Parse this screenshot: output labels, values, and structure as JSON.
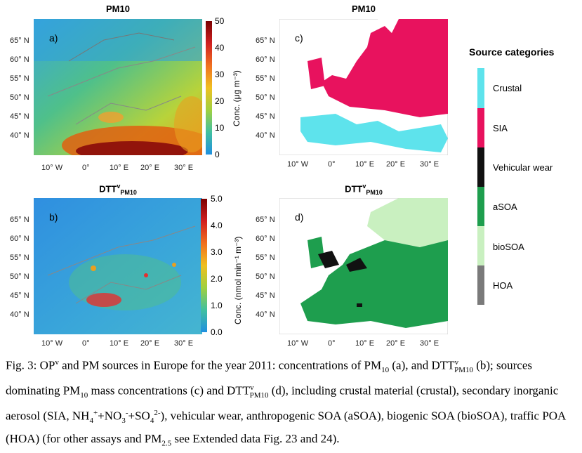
{
  "panels": {
    "a": {
      "title": "PM10",
      "letter": "a)"
    },
    "b": {
      "title_main": "DTT",
      "title_sup": "v",
      "title_sub": "PM10",
      "letter": "b)"
    },
    "c": {
      "title": "PM10",
      "letter": "c)"
    },
    "d": {
      "title_main": "DTT",
      "title_sup": "v",
      "title_sub": "PM10",
      "letter": "d)"
    }
  },
  "lat_ticks": [
    "65° N",
    "60° N",
    "55° N",
    "50° N",
    "45° N",
    "40° N"
  ],
  "lon_ticks": [
    "10° W",
    "0°",
    "10° E",
    "20° E",
    "30° E"
  ],
  "colorbar_top": {
    "ticks": [
      "50",
      "40",
      "30",
      "20",
      "10",
      "0"
    ],
    "label": "Conc. (μg m⁻³)"
  },
  "colorbar_bottom": {
    "ticks": [
      "5.0",
      "4.0",
      "3.0",
      "2.0",
      "1.0",
      "0.0"
    ],
    "label": "Conc. (nmol min⁻¹ m⁻³)"
  },
  "legend": {
    "title": "Source categories",
    "items": [
      {
        "label": "Crustal",
        "color": "#5ee3ec"
      },
      {
        "label": "SIA",
        "color": "#e8125e"
      },
      {
        "label": "Vehicular wear",
        "color": "#111111"
      },
      {
        "label": "aSOA",
        "color": "#1e9e4e"
      },
      {
        "label": "bioSOA",
        "color": "#c9f0c0"
      },
      {
        "label": "HOA",
        "color": "#7a7a7a"
      }
    ]
  },
  "caption": {
    "p1": "Fig. 3: OP",
    "p1_sup": "v",
    "p2": " and PM sources in Europe for the year 2011: concentrations of PM",
    "p2_sub": "10",
    "p3": " (a), and DTT",
    "p3_sup": "v",
    "p3_sub": "PM10",
    "p4": " (b); sources dominating PM",
    "p4_sub": "10",
    "p5": " mass concentrations (c) and DTT",
    "p5_sup": "v",
    "p5_sub": "PM10",
    "p6": " (d), including crustal material (crustal), secondary inorganic aerosol (SIA, NH",
    "p6_sub1": "4",
    "p6_sup1": "+",
    "p7": "+NO",
    "p7_sub": "3",
    "p7_sup": "-",
    "p8": "+SO",
    "p8_sub": "4",
    "p8_sup": "2-",
    "p9": "), vehicular wear, anthropogenic SOA (aSOA), biogenic SOA (bioSOA), traffic POA (HOA) (for other assays and PM",
    "p9_sub": "2.5",
    "p10": " see Extended data Fig. 23 and 24)."
  }
}
